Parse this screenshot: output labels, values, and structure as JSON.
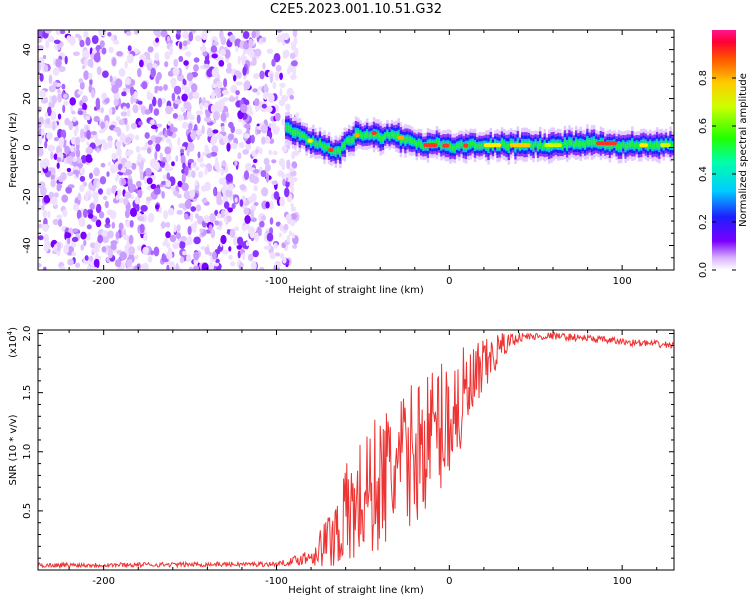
{
  "figure_title": "C2E5.2023.001.10.51.G32",
  "colors": {
    "purple": "#7a00ff",
    "snr_line": "#ee3333",
    "axis": "#000000",
    "band_core": "#ff2222"
  },
  "chart_data": [
    {
      "type": "heatmap",
      "title": "C2E5.2023.001.10.51.G32",
      "xlabel": "Height of straight line (km)",
      "ylabel": "Frequency (Hz)",
      "xlim": [
        -238,
        130
      ],
      "ylim": [
        -50,
        48
      ],
      "x_ticks": [
        -200,
        -100,
        0,
        100
      ],
      "x_tick_labels": [
        "-200",
        "-100",
        "0",
        "100"
      ],
      "y_ticks": [
        -40,
        -20,
        0,
        20,
        40
      ],
      "y_tick_labels": [
        "-40",
        "-20",
        "0",
        "20",
        "40"
      ],
      "noise_region_x": [
        -238,
        -92
      ],
      "band_center": {
        "x": [
          -95,
          -90,
          -85,
          -80,
          -75,
          -70,
          -65,
          -60,
          -55,
          -50,
          -45,
          -40,
          -35,
          -30,
          -25,
          -20,
          -15,
          -10,
          -5,
          0,
          10,
          20,
          40,
          60,
          80,
          100,
          120,
          130
        ],
        "y": [
          8,
          6,
          4,
          2,
          1,
          -1,
          -2,
          2,
          5,
          5,
          6,
          4,
          5,
          4,
          3,
          2,
          1,
          2,
          1,
          0,
          1,
          1,
          1,
          1,
          2,
          1,
          1,
          1
        ]
      },
      "colorbar": {
        "label": "Normalized spectral amplitude",
        "range": [
          0,
          1
        ],
        "ticks": [
          0.0,
          0.2,
          0.4,
          0.6,
          0.8
        ],
        "tick_labels": [
          "0.0",
          "0.2",
          "0.4",
          "0.6",
          "0.8"
        ]
      }
    },
    {
      "type": "line",
      "xlabel": "Height of straight line (km)",
      "ylabel": "SNR (10 * v/v)",
      "yscale_label": "(x10",
      "yscale_exp": "4",
      "yscale_close": ")",
      "xlim": [
        -238,
        130
      ],
      "ylim": [
        0,
        2.03
      ],
      "x_ticks": [
        -200,
        -100,
        0,
        100
      ],
      "x_tick_labels": [
        "-200",
        "-100",
        "0",
        "100"
      ],
      "y_ticks": [
        0.5,
        1.0,
        1.5,
        2.0
      ],
      "y_tick_labels": [
        "0.5",
        "1.0",
        "1.5",
        "2.0"
      ],
      "series": [
        {
          "name": "SNR",
          "color": "#ee3333",
          "trend_x": [
            -238,
            -100,
            -92,
            -80,
            -70,
            -60,
            -50,
            -40,
            -30,
            -20,
            -10,
            0,
            10,
            20,
            30,
            40,
            60,
            80,
            100,
            130
          ],
          "trend_y": [
            0.04,
            0.05,
            0.07,
            0.12,
            0.25,
            0.45,
            0.6,
            0.75,
            0.85,
            1.0,
            1.15,
            1.3,
            1.45,
            1.7,
            1.9,
            1.97,
            1.98,
            1.96,
            1.93,
            1.9
          ],
          "spread_x": [
            -238,
            -100,
            -92,
            -80,
            -70,
            -60,
            -50,
            -40,
            -30,
            -20,
            -10,
            0,
            10,
            20,
            30,
            40,
            60,
            80,
            100,
            130
          ],
          "spread_y": [
            0.02,
            0.02,
            0.03,
            0.08,
            0.25,
            0.45,
            0.55,
            0.6,
            0.6,
            0.6,
            0.6,
            0.55,
            0.45,
            0.25,
            0.12,
            0.04,
            0.03,
            0.03,
            0.03,
            0.03
          ]
        }
      ]
    }
  ]
}
